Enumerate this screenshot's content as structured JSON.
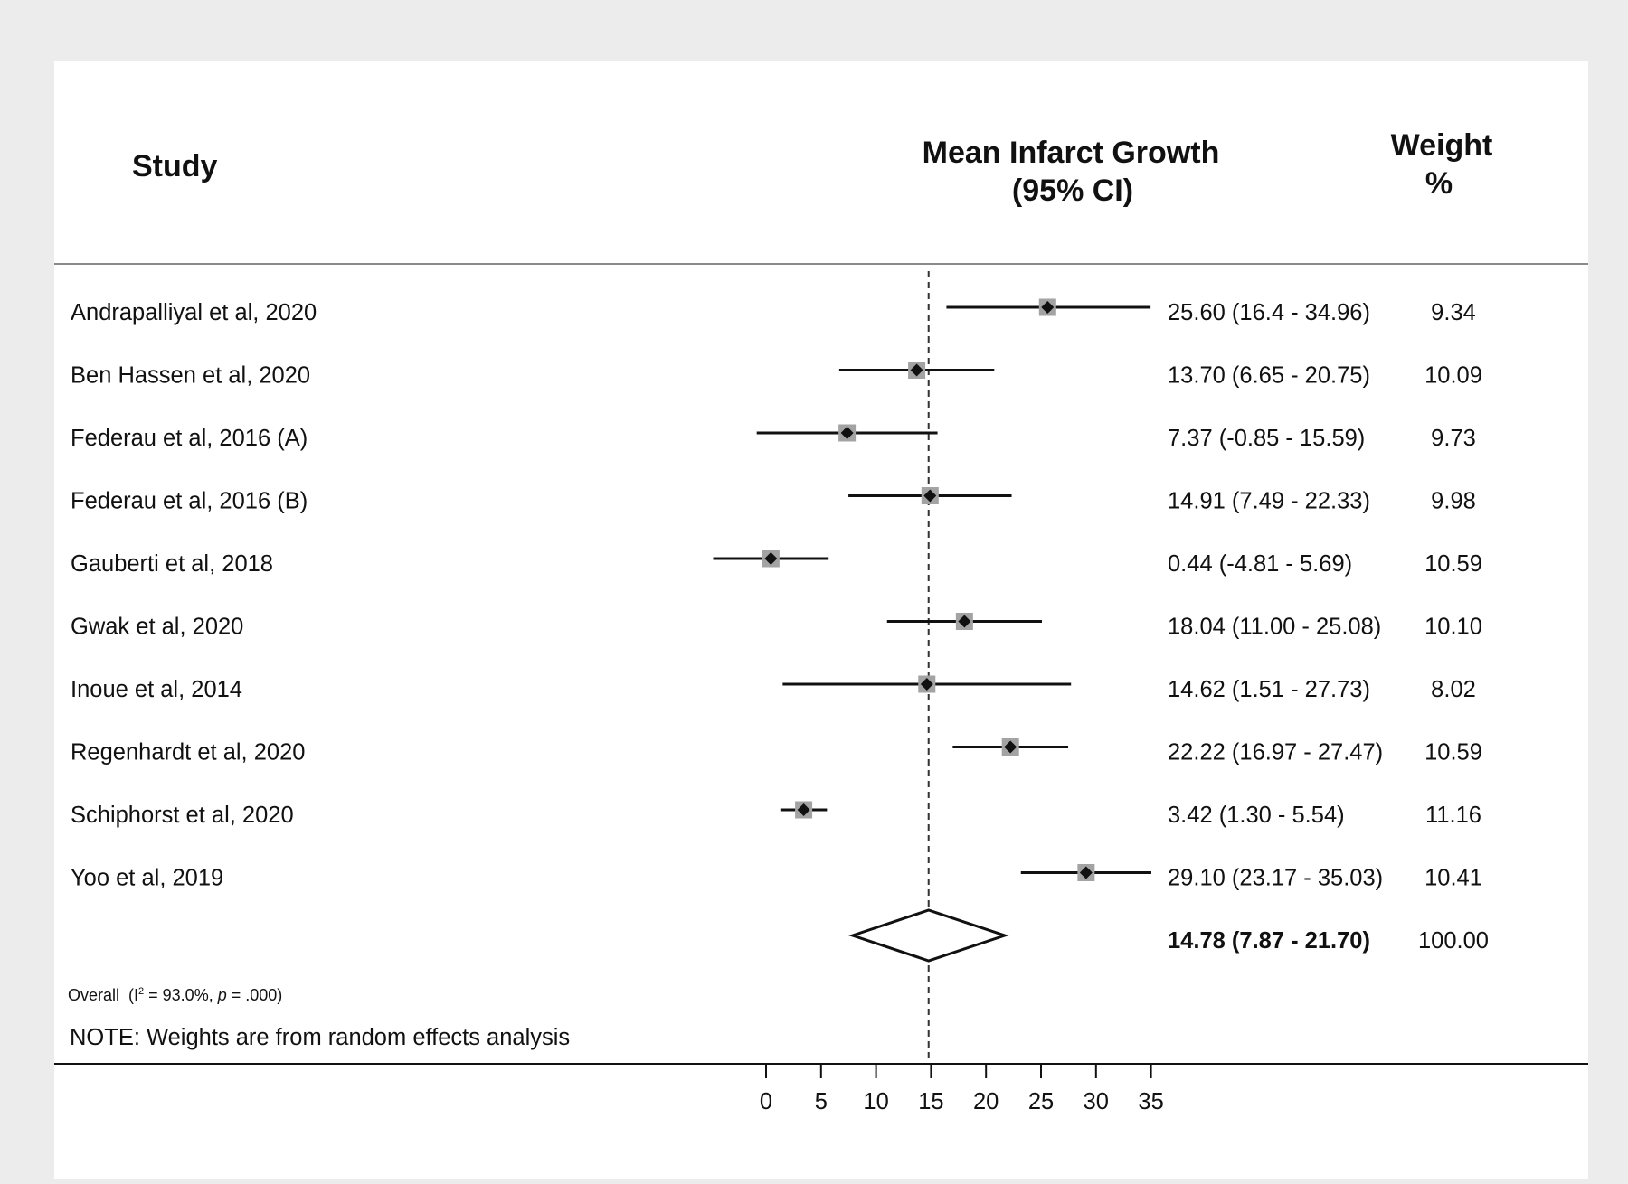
{
  "chart_data": {
    "type": "forest",
    "columns": {
      "study": "Study",
      "estimate": [
        "Mean Infarct Growth",
        "(95% CI)"
      ],
      "weight": [
        "Weight",
        "%"
      ]
    },
    "studies": [
      {
        "name": "Andrapalliyal et al, 2020",
        "mean": 25.6,
        "lower": 16.4,
        "upper": 34.96,
        "ci_text": "25.60 (16.4 - 34.96)",
        "weight": "9.34"
      },
      {
        "name": "Ben Hassen et al, 2020",
        "mean": 13.7,
        "lower": 6.65,
        "upper": 20.75,
        "ci_text": "13.70 (6.65 - 20.75)",
        "weight": "10.09"
      },
      {
        "name": "Federau et al, 2016 (A)",
        "mean": 7.37,
        "lower": -0.85,
        "upper": 15.59,
        "ci_text": "7.37 (-0.85 - 15.59)",
        "weight": "9.73"
      },
      {
        "name": "Federau et al, 2016 (B)",
        "mean": 14.91,
        "lower": 7.49,
        "upper": 22.33,
        "ci_text": "14.91 (7.49 - 22.33)",
        "weight": "9.98"
      },
      {
        "name": "Gauberti et al, 2018",
        "mean": 0.44,
        "lower": -4.81,
        "upper": 5.69,
        "ci_text": "0.44 (-4.81 - 5.69)",
        "weight": "10.59"
      },
      {
        "name": "Gwak et al, 2020",
        "mean": 18.04,
        "lower": 11.0,
        "upper": 25.08,
        "ci_text": "18.04 (11.00 - 25.08)",
        "weight": "10.10"
      },
      {
        "name": "Inoue et al, 2014",
        "mean": 14.62,
        "lower": 1.51,
        "upper": 27.73,
        "ci_text": "14.62 (1.51 - 27.73)",
        "weight": "8.02"
      },
      {
        "name": "Regenhardt et al, 2020",
        "mean": 22.22,
        "lower": 16.97,
        "upper": 27.47,
        "ci_text": "22.22 (16.97 - 27.47)",
        "weight": "10.59"
      },
      {
        "name": "Schiphorst et al, 2020",
        "mean": 3.42,
        "lower": 1.3,
        "upper": 5.54,
        "ci_text": "3.42 (1.30 - 5.54)",
        "weight": "11.16"
      },
      {
        "name": "Yoo et al, 2019",
        "mean": 29.1,
        "lower": 23.17,
        "upper": 35.03,
        "ci_text": "29.10 (23.17 - 35.03)",
        "weight": "10.41"
      }
    ],
    "overall": {
      "label": "Overall",
      "i2_prefix": "(I",
      "i2_sup": "2",
      "i2_value": " = 93.0%, ",
      "p_label": "p",
      "p_value": " = .000)",
      "mean": 14.78,
      "lower": 7.87,
      "upper": 21.7,
      "ci_text": "14.78 (7.87 - 21.70)",
      "weight": "100.00"
    },
    "note": "NOTE: Weights are from random effects analysis",
    "reference_line": 14.78,
    "x_ticks": [
      0,
      5,
      10,
      15,
      20,
      25,
      30,
      35
    ],
    "x_range": [
      -5,
      35
    ]
  }
}
